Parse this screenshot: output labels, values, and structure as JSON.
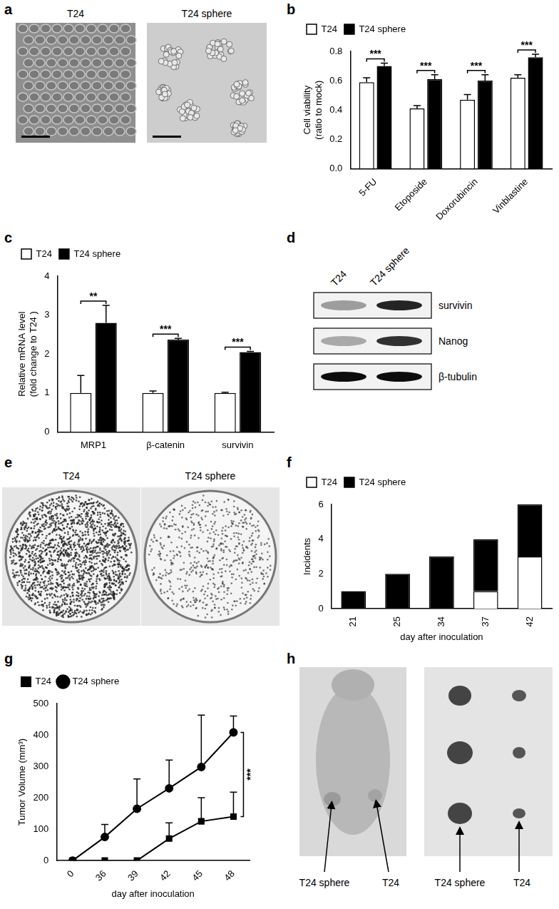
{
  "chart_data": [
    {
      "panel_label": "b",
      "type": "bar",
      "categories": [
        "5-FU",
        "Etoposide",
        "Doxorubincin",
        "Vinblastine"
      ],
      "y_label": [
        "Cell viability",
        "(ratio to mock)"
      ],
      "ylim": [
        0,
        0.8
      ],
      "yticks": [
        {
          "value": 0,
          "label": "0.0"
        },
        {
          "value": 0.2,
          "label": "0.2"
        },
        {
          "value": 0.4,
          "label": "0.4"
        },
        {
          "value": 0.6,
          "label": "0.6"
        },
        {
          "value": 0.8,
          "label": "0.8"
        }
      ],
      "grid": false,
      "legend": "top-left",
      "series": [
        {
          "name": "T24",
          "color": "#ffffff",
          "values": [
            0.59,
            0.41,
            0.47,
            0.62
          ],
          "errors": [
            0.03,
            0.02,
            0.035,
            0.02
          ]
        },
        {
          "name": "T24 sphere",
          "color": "#000000",
          "values": [
            0.7,
            0.61,
            0.6,
            0.76
          ],
          "errors": [
            0.02,
            0.03,
            0.04,
            0.02
          ]
        }
      ],
      "significance": [
        "***",
        "***",
        "***",
        "***"
      ]
    },
    {
      "panel_label": "c",
      "type": "bar",
      "categories": [
        "MRP1",
        "β-catenin",
        "survivin"
      ],
      "y_label": [
        "Relative mRNA level",
        "(fold change to T24 )"
      ],
      "ylim": [
        0,
        4
      ],
      "yticks": [
        0,
        1,
        2,
        3,
        4
      ],
      "grid": false,
      "legend": "top-left",
      "series": [
        {
          "name": "T24",
          "color": "#ffffff",
          "values": [
            1,
            1,
            1
          ],
          "errors": [
            0.45,
            0.05,
            0.02
          ]
        },
        {
          "name": "T24 sphere",
          "color": "#000000",
          "values": [
            2.8,
            2.37,
            2.05
          ],
          "errors": [
            0.45,
            0.03,
            0.02
          ]
        }
      ],
      "significance": [
        "**",
        "***",
        "***"
      ]
    },
    {
      "panel_label": "f",
      "type": "bar",
      "stacked": true,
      "categories": [
        "21",
        "25",
        "34",
        "37",
        "42"
      ],
      "x_label": "day after inoculation",
      "y_label": "Incidents",
      "ylim": [
        0,
        6
      ],
      "yticks": [
        0,
        2,
        4,
        6
      ],
      "grid": false,
      "legend": "top-left",
      "series": [
        {
          "name": "T24",
          "color": "#ffffff",
          "values": [
            0,
            0,
            0,
            1,
            3
          ]
        },
        {
          "name": "T24 sphere",
          "color": "#000000",
          "values": [
            1,
            2,
            3,
            3,
            3
          ]
        }
      ]
    },
    {
      "panel_label": "g",
      "type": "line",
      "categories": [
        "0",
        "36",
        "39",
        "42",
        "45",
        "48"
      ],
      "x_label": "day after inoculation",
      "y_label": "Tumor Volume (mm³)",
      "ylim": [
        0,
        500
      ],
      "yticks": [
        0,
        100,
        200,
        300,
        400,
        500
      ],
      "grid": false,
      "legend": "top-left",
      "series": [
        {
          "name": "T24",
          "color": "#000000",
          "marker": "square",
          "values": [
            0,
            0,
            0,
            70,
            125,
            140
          ],
          "errors": [
            0,
            0,
            0,
            50,
            75,
            78
          ]
        },
        {
          "name": "T24 sphere",
          "color": "#000000",
          "marker": "circle",
          "values": [
            0,
            75,
            165,
            230,
            298,
            408
          ],
          "errors": [
            0,
            40,
            95,
            90,
            165,
            52
          ]
        }
      ],
      "significance": "***"
    }
  ],
  "images": {
    "a": {
      "panel_label": "a",
      "labels": [
        "T24",
        "T24 sphere"
      ]
    },
    "d": {
      "panel_label": "d",
      "lanes": [
        "T24",
        "T24 sphere"
      ],
      "bands": [
        "survivin",
        "Nanog",
        "β-tubulin"
      ]
    },
    "e": {
      "panel_label": "e",
      "labels": [
        "T24",
        "T24 sphere"
      ]
    },
    "h": {
      "panel_label": "h",
      "mouse_labels": [
        "T24 sphere",
        "T24"
      ],
      "tumor_labels": [
        "T24 sphere",
        "T24"
      ]
    }
  }
}
